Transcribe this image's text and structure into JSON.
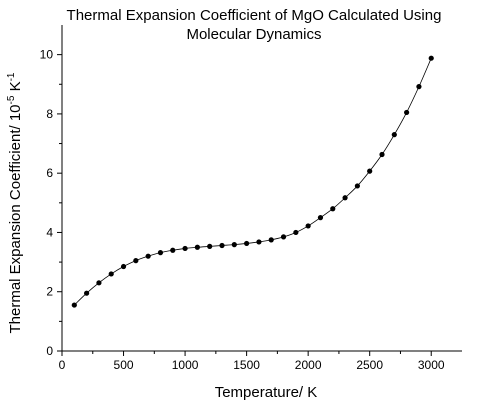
{
  "chart_data": {
    "type": "line",
    "title": [
      "Thermal Expansion Coefficient of MgO Calculated Using",
      "Molecular Dynamics"
    ],
    "xlabel": "Temperature/ K",
    "ylabel": {
      "main": "Thermal Expansion Coefficient/ 10",
      "exp": "-5",
      "unit": " K",
      "unit_exp": "-1"
    },
    "xlim": [
      0,
      3250
    ],
    "ylim": [
      0,
      11
    ],
    "x_ticks": [
      0,
      500,
      1000,
      1500,
      2000,
      2500,
      3000
    ],
    "y_ticks": [
      0,
      2,
      4,
      6,
      8,
      10
    ],
    "grid": false,
    "legend": "none",
    "series": [
      {
        "marker": "circle",
        "color": "#000000",
        "x": [
          100,
          200,
          300,
          400,
          500,
          600,
          700,
          800,
          900,
          1000,
          1100,
          1200,
          1300,
          1400,
          1500,
          1600,
          1700,
          1800,
          1900,
          2000,
          2100,
          2200,
          2300,
          2400,
          2500,
          2600,
          2700,
          2800,
          2900,
          3000
        ],
        "y": [
          1.55,
          1.95,
          2.3,
          2.6,
          2.85,
          3.05,
          3.2,
          3.32,
          3.4,
          3.46,
          3.5,
          3.53,
          3.56,
          3.59,
          3.63,
          3.68,
          3.75,
          3.85,
          4.0,
          4.22,
          4.5,
          4.8,
          5.17,
          5.57,
          6.07,
          6.63,
          7.3,
          8.05,
          8.92,
          9.88
        ]
      }
    ]
  }
}
